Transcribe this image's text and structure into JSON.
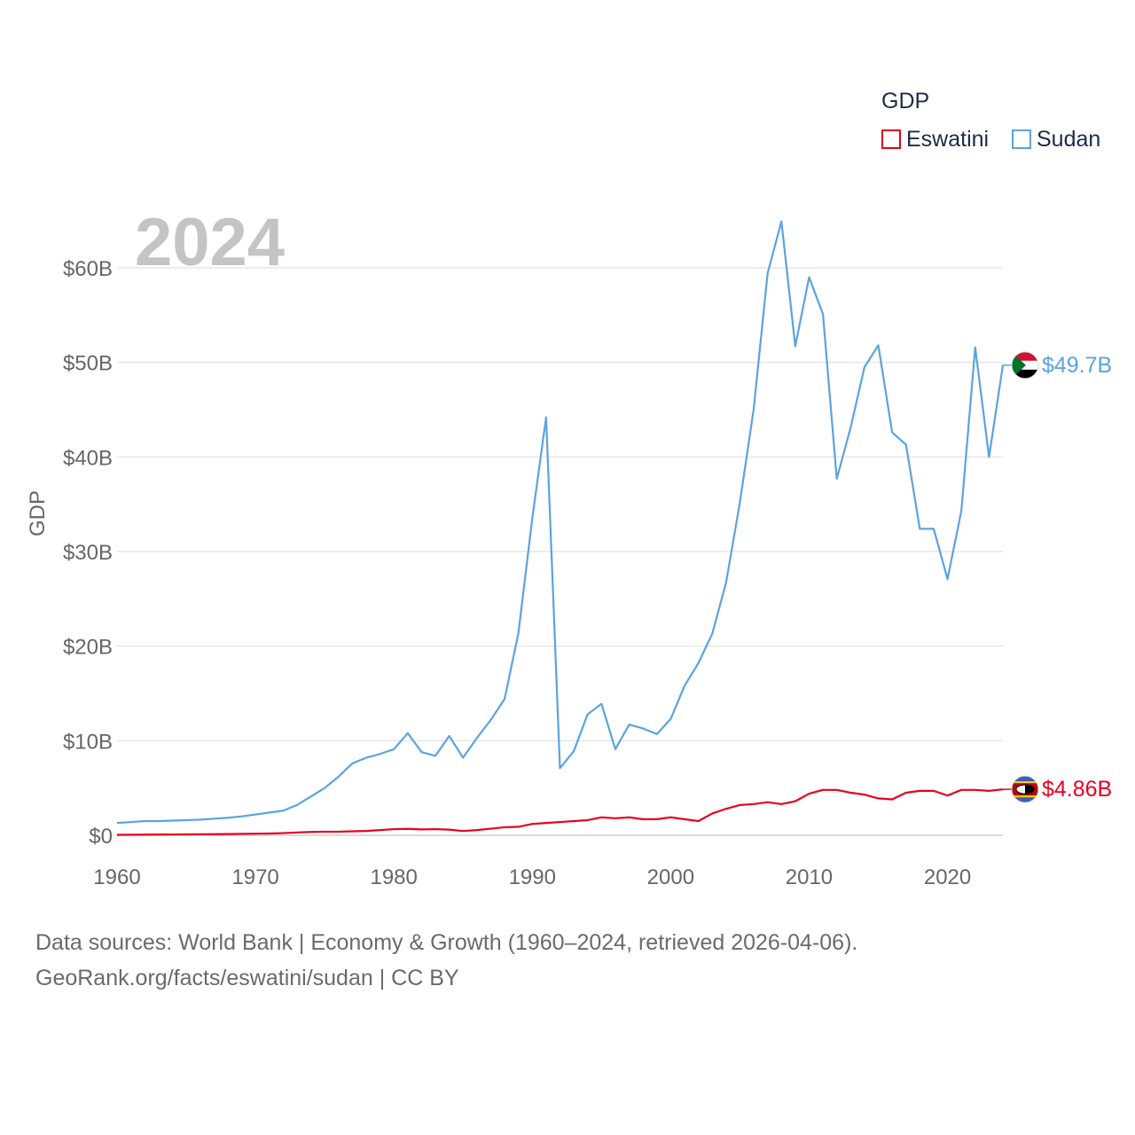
{
  "chart_data": {
    "type": "line",
    "title": "",
    "year_label": "2024",
    "ylabel": "GDP",
    "xlabel": "",
    "xlim": [
      1960,
      2024
    ],
    "ylim": [
      0,
      60
    ],
    "x_ticks": [
      "1960",
      "1970",
      "1980",
      "1990",
      "2000",
      "2010",
      "2020"
    ],
    "y_ticks": [
      {
        "value": 0,
        "label": "$0"
      },
      {
        "value": 10,
        "label": "$10B"
      },
      {
        "value": 20,
        "label": "$20B"
      },
      {
        "value": 30,
        "label": "$30B"
      },
      {
        "value": 40,
        "label": "$40B"
      },
      {
        "value": 50,
        "label": "$50B"
      },
      {
        "value": 60,
        "label": "$60B"
      }
    ],
    "legend": {
      "title": "GDP",
      "placement": "top-right",
      "entries": [
        "Eswatini",
        "Sudan"
      ]
    },
    "x": [
      1960,
      1961,
      1962,
      1963,
      1964,
      1965,
      1966,
      1967,
      1968,
      1969,
      1970,
      1971,
      1972,
      1973,
      1974,
      1975,
      1976,
      1977,
      1978,
      1979,
      1980,
      1981,
      1982,
      1983,
      1984,
      1985,
      1986,
      1987,
      1988,
      1989,
      1990,
      1991,
      1992,
      1993,
      1994,
      1995,
      1996,
      1997,
      1998,
      1999,
      2000,
      2001,
      2002,
      2003,
      2004,
      2005,
      2006,
      2007,
      2008,
      2009,
      2010,
      2011,
      2012,
      2013,
      2014,
      2015,
      2016,
      2017,
      2018,
      2019,
      2020,
      2021,
      2022,
      2023,
      2024
    ],
    "series": [
      {
        "name": "Sudan",
        "color": "#5ba3e0",
        "end_label": "$49.7B",
        "values": [
          1.3,
          1.4,
          1.5,
          1.5,
          1.55,
          1.6,
          1.65,
          1.75,
          1.85,
          2.0,
          2.2,
          2.4,
          2.6,
          3.2,
          4.1,
          5.0,
          6.2,
          7.6,
          8.2,
          8.6,
          9.1,
          10.8,
          8.8,
          8.4,
          10.5,
          8.2,
          10.3,
          12.2,
          14.4,
          21.4,
          33.5,
          44.2,
          7.1,
          8.9,
          12.8,
          13.9,
          9.1,
          11.7,
          11.3,
          10.7,
          12.3,
          15.8,
          18.2,
          21.3,
          26.7,
          35.2,
          45.1,
          59.4,
          64.9,
          51.7,
          59.0,
          55.1,
          37.7,
          43.1,
          49.5,
          51.8,
          42.6,
          41.3,
          32.4,
          32.4,
          27.1,
          34.3,
          51.6,
          40.0,
          49.7
        ]
      },
      {
        "name": "Eswatini",
        "color": "#e8001f",
        "end_label": "$4.86B",
        "values": [
          0.05,
          0.06,
          0.07,
          0.08,
          0.09,
          0.1,
          0.11,
          0.12,
          0.13,
          0.15,
          0.17,
          0.19,
          0.23,
          0.3,
          0.35,
          0.38,
          0.38,
          0.42,
          0.46,
          0.55,
          0.65,
          0.68,
          0.62,
          0.65,
          0.6,
          0.45,
          0.55,
          0.7,
          0.85,
          0.9,
          1.2,
          1.3,
          1.4,
          1.5,
          1.6,
          1.9,
          1.8,
          1.9,
          1.7,
          1.7,
          1.9,
          1.7,
          1.5,
          2.3,
          2.8,
          3.2,
          3.3,
          3.5,
          3.3,
          3.6,
          4.4,
          4.8,
          4.8,
          4.5,
          4.3,
          3.9,
          3.8,
          4.5,
          4.7,
          4.7,
          4.2,
          4.8,
          4.8,
          4.7,
          4.86
        ]
      }
    ]
  },
  "source": {
    "line1": "Data sources: World Bank | Economy & Growth (1960–2024, retrieved 2026-04-06).",
    "line2": "GeoRank.org/facts/eswatini/sudan | CC BY"
  }
}
